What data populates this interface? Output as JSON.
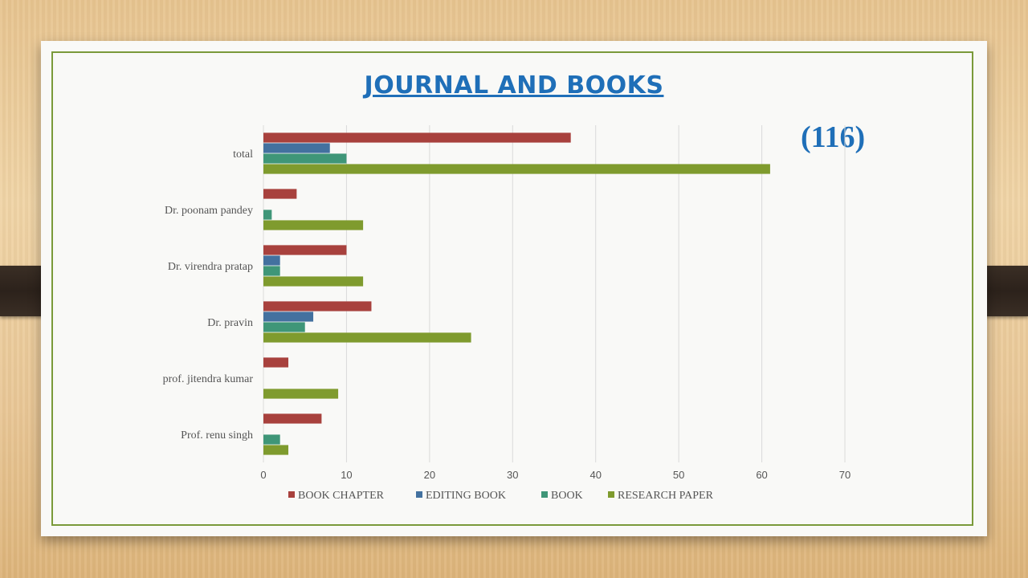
{
  "slide": {
    "title": "JOURNAL AND BOOKS",
    "total_badge": "(116)"
  },
  "colors": {
    "BOOK CHAPTER": "#a8413d",
    "EDITING BOOK": "#43719f",
    "BOOK": "#3f9678",
    "RESEARCH PAPER": "#7f9b2e"
  },
  "chart_data": {
    "type": "bar",
    "orientation": "horizontal",
    "categories": [
      "total",
      "Dr. poonam pandey",
      "Dr. virendra pratap",
      "Dr. pravin",
      "prof. jitendra kumar",
      "Prof. renu singh"
    ],
    "series": [
      {
        "name": "BOOK CHAPTER",
        "values": [
          37,
          4,
          10,
          13,
          3,
          7
        ]
      },
      {
        "name": "EDITING BOOK",
        "values": [
          8,
          0,
          2,
          6,
          0,
          0
        ]
      },
      {
        "name": "BOOK",
        "values": [
          10,
          1,
          2,
          5,
          0,
          2
        ]
      },
      {
        "name": "RESEARCH PAPER",
        "values": [
          61,
          12,
          12,
          25,
          9,
          3
        ]
      }
    ],
    "xlim": [
      0,
      70
    ],
    "xticks": [
      "0",
      "10",
      "20",
      "30",
      "40",
      "50",
      "60",
      "70"
    ],
    "grid": true,
    "legend": "bottom"
  }
}
